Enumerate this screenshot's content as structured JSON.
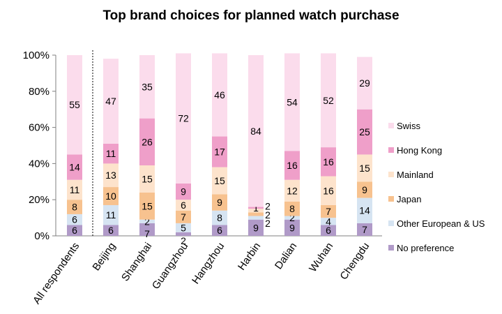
{
  "chart_data": {
    "type": "bar",
    "stacked": true,
    "percent": true,
    "title": "Top brand choices for planned watch purchase",
    "xlabel": "",
    "ylabel": "",
    "ylim": [
      0,
      100
    ],
    "yticks": [
      "0%",
      "20%",
      "40%",
      "60%",
      "80%",
      "100%"
    ],
    "grid": false,
    "legend_position": "right",
    "categories": [
      "All respondents",
      "Beijing",
      "Shanghai",
      "Guangzhou",
      "Hangzhou",
      "Harbin",
      "Dalian",
      "Wuhan",
      "Chengdu"
    ],
    "series": [
      {
        "name": "No preference",
        "color": "#b09ac8",
        "values": [
          6,
          6,
          7,
          2,
          6,
          9,
          9,
          6,
          7
        ]
      },
      {
        "name": "Other European & US",
        "color": "#d6e4f2",
        "values": [
          6,
          11,
          2,
          5,
          8,
          2,
          2,
          4,
          14
        ]
      },
      {
        "name": "Japan",
        "color": "#f7c28f",
        "values": [
          8,
          10,
          15,
          7,
          9,
          2,
          8,
          7,
          9
        ]
      },
      {
        "name": "Mainland",
        "color": "#fde3cc",
        "values": [
          11,
          13,
          15,
          6,
          15,
          2,
          12,
          16,
          15
        ]
      },
      {
        "name": "Hong Kong",
        "color": "#ef9fc9",
        "values": [
          14,
          11,
          26,
          9,
          17,
          1,
          16,
          16,
          25
        ]
      },
      {
        "name": "Swiss",
        "color": "#fbdcec",
        "values": [
          55,
          47,
          35,
          72,
          46,
          84,
          54,
          52,
          29
        ]
      }
    ]
  }
}
